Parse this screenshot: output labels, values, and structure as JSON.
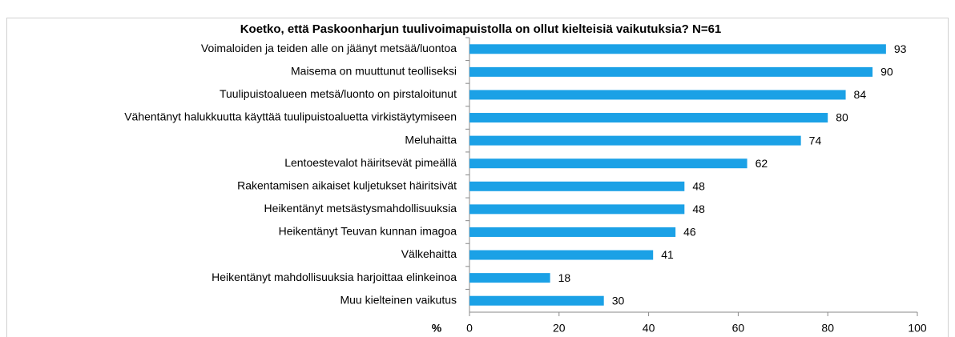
{
  "chart_data": {
    "type": "bar",
    "orientation": "horizontal",
    "title": "Koetko, että Paskoonharjun  tuulivoimapuistolla  on ollut kielteisiä vaikutuksia? N=61",
    "xlabel": "%",
    "categories": [
      "Voimaloiden ja teiden alle on jäänyt metsää/luontoa",
      "Maisema on muuttunut teolliseksi",
      "Tuulipuistoalueen metsä/luonto on pirstaloitunut",
      "Vähentänyt halukkuutta käyttää tuulipuistoaluetta virkistäytymiseen",
      "Meluhaitta",
      "Lentoestevalot häiritsevät pimeällä",
      "Rakentamisen aikaiset kuljetukset häiritsivät",
      "Heikentänyt metsästysmahdollisuuksia",
      "Heikentänyt Teuvan kunnan imagoa",
      "Välkehaitta",
      "Heikentänyt mahdollisuuksia harjoittaa elinkeinoa",
      "Muu kielteinen vaikutus"
    ],
    "values": [
      93,
      90,
      84,
      80,
      74,
      62,
      48,
      48,
      46,
      41,
      18,
      30
    ],
    "color": "#1ba1e6",
    "xlim": [
      0,
      100
    ],
    "xticks": [
      0,
      20,
      40,
      60,
      80,
      100
    ],
    "grid": false
  }
}
